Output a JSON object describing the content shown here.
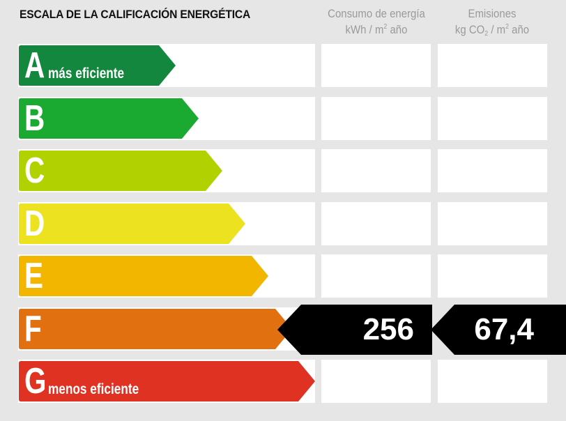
{
  "title": "ESCALA DE LA CALIFICACIÓN ENERGÉTICA",
  "columns": {
    "consumo": {
      "line1": "Consumo de energía",
      "unit_prefix": "kWh / m",
      "unit_sup": "2",
      "unit_suffix": " año"
    },
    "emisiones": {
      "line1": "Emisiones",
      "unit_prefix": "kg CO",
      "unit_sub": "2",
      "unit_mid": " / m",
      "unit_sup": "2",
      "unit_suffix": " año"
    }
  },
  "classes": [
    {
      "letter": "A",
      "label": "más eficiente",
      "color": "#13873d"
    },
    {
      "letter": "B",
      "label": "",
      "color": "#1aaa32"
    },
    {
      "letter": "C",
      "label": "",
      "color": "#b2d200"
    },
    {
      "letter": "D",
      "label": "",
      "color": "#ece220"
    },
    {
      "letter": "E",
      "label": "",
      "color": "#f2b600"
    },
    {
      "letter": "F",
      "label": "",
      "color": "#e07010"
    },
    {
      "letter": "G",
      "label": "menos eficiente",
      "color": "#e03222"
    }
  ],
  "rating": {
    "class": "F",
    "consumo_value": "256",
    "emisiones_value": "67,4",
    "indicator_color": "#000000"
  }
}
